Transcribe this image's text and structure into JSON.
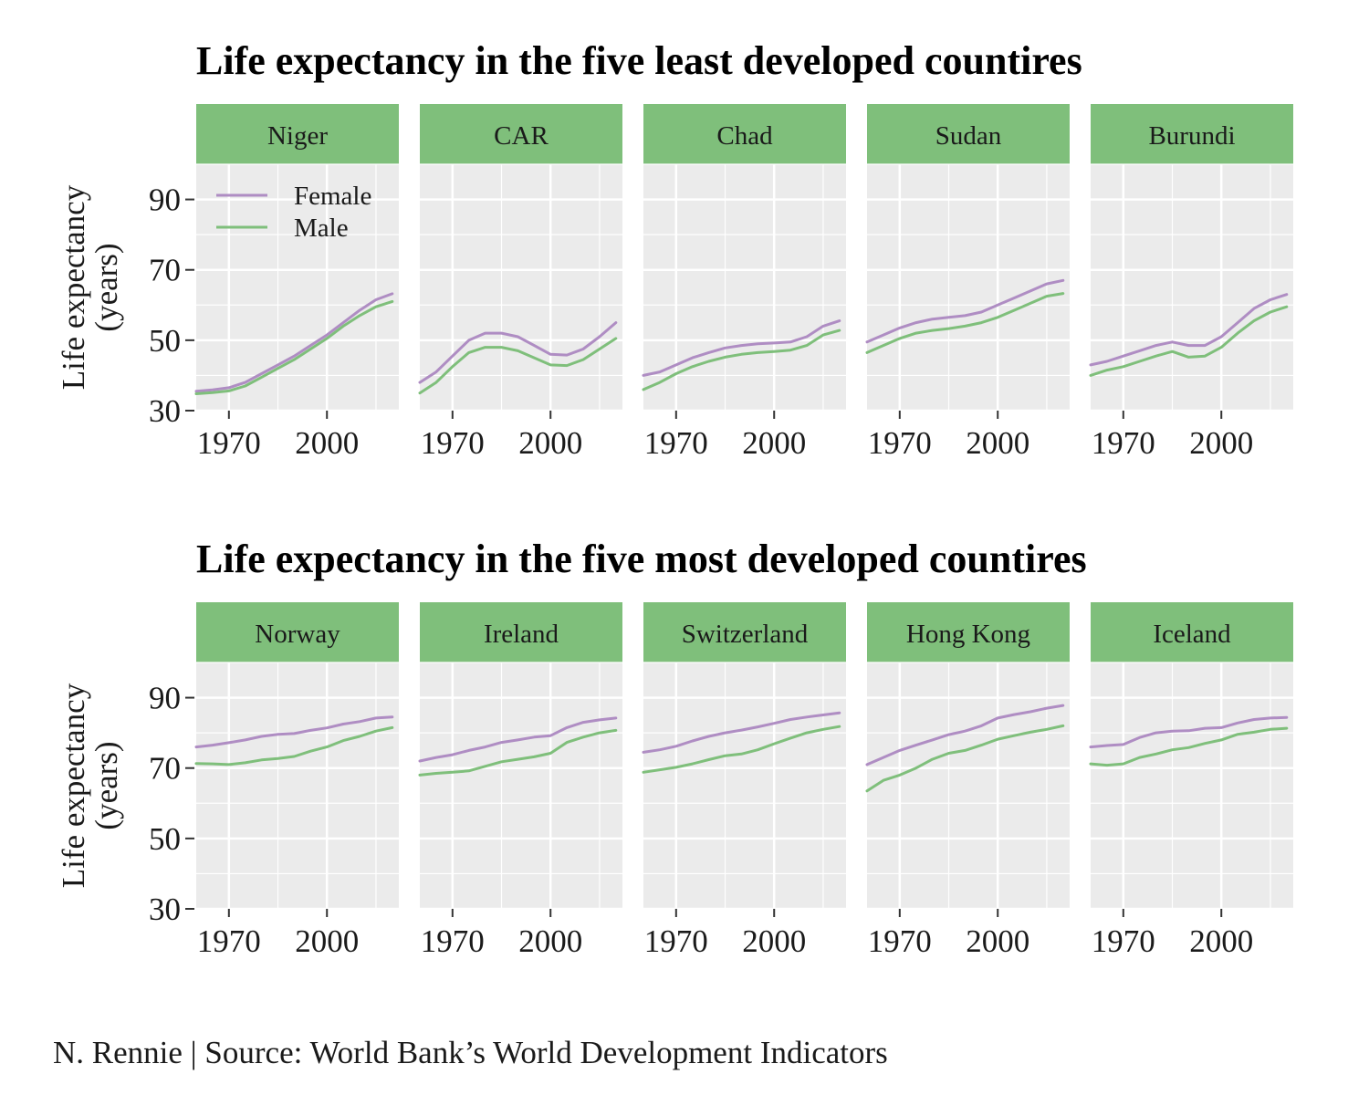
{
  "caption": "N. Rennie | Source: World Bank’s World Development Indicators",
  "colors": {
    "female": "#AF8DC3",
    "male": "#7FBF7B",
    "strip": "#7FBF7B",
    "panel_bg": "#EBEBEB",
    "grid": "#FFFFFF"
  },
  "chart_data": [
    {
      "type": "line",
      "title": "Life expectancy in the five least developed countires",
      "ylabel": "Life expectancy\n(years)",
      "xlabel": "",
      "xlim": [
        1960,
        2022
      ],
      "ylim": [
        30,
        100
      ],
      "yticks": [
        30,
        50,
        70,
        90
      ],
      "xticks": [
        1970,
        2000
      ],
      "grid": true,
      "legend": {
        "position": "inside-top-left-first-panel",
        "entries": [
          {
            "key": "female",
            "label": "Female"
          },
          {
            "key": "male",
            "label": "Male"
          }
        ]
      },
      "x": [
        1960,
        1965,
        1970,
        1975,
        1980,
        1985,
        1990,
        1995,
        2000,
        2005,
        2010,
        2015,
        2020
      ],
      "panels": [
        {
          "name": "Niger",
          "series": [
            {
              "key": "female",
              "values": [
                35.5,
                35.9,
                36.5,
                38,
                40.5,
                43,
                45.5,
                48.5,
                51.5,
                55,
                58.5,
                61.5,
                63.2
              ]
            },
            {
              "key": "male",
              "values": [
                34.8,
                35.1,
                35.6,
                37,
                39.5,
                42,
                44.5,
                47.5,
                50.5,
                54,
                57,
                59.5,
                61
              ]
            }
          ]
        },
        {
          "name": "CAR",
          "series": [
            {
              "key": "female",
              "values": [
                38,
                41,
                45.5,
                50,
                52,
                52,
                51,
                48.5,
                46,
                45.8,
                47.5,
                51,
                55
              ]
            },
            {
              "key": "male",
              "values": [
                35,
                38,
                42.5,
                46.5,
                48,
                48,
                47,
                45,
                43,
                42.8,
                44.5,
                47.5,
                50.5
              ]
            }
          ]
        },
        {
          "name": "Chad",
          "series": [
            {
              "key": "female",
              "values": [
                40,
                41,
                43,
                45,
                46.5,
                47.8,
                48.5,
                49,
                49.2,
                49.5,
                51,
                54,
                55.5
              ]
            },
            {
              "key": "male",
              "values": [
                36,
                38,
                40.5,
                42.5,
                44,
                45.2,
                46,
                46.5,
                46.8,
                47.2,
                48.5,
                51.5,
                52.8
              ]
            }
          ]
        },
        {
          "name": "Sudan",
          "series": [
            {
              "key": "female",
              "values": [
                49.5,
                51.5,
                53.5,
                55,
                56,
                56.5,
                57,
                58,
                60,
                62,
                64,
                66,
                67
              ]
            },
            {
              "key": "male",
              "values": [
                46.5,
                48.5,
                50.5,
                52,
                52.8,
                53.3,
                54,
                55,
                56.5,
                58.5,
                60.5,
                62.5,
                63.3
              ]
            }
          ]
        },
        {
          "name": "Burundi",
          "series": [
            {
              "key": "female",
              "values": [
                43,
                44,
                45.5,
                47,
                48.5,
                49.5,
                48.5,
                48.5,
                51,
                55,
                59,
                61.5,
                63
              ]
            },
            {
              "key": "male",
              "values": [
                40,
                41.5,
                42.5,
                44,
                45.5,
                46.8,
                45.2,
                45.5,
                48,
                52,
                55.5,
                58,
                59.5
              ]
            }
          ]
        }
      ]
    },
    {
      "type": "line",
      "title": "Life expectancy in the five most developed countires",
      "ylabel": "Life expectancy\n(years)",
      "xlabel": "",
      "xlim": [
        1960,
        2022
      ],
      "ylim": [
        30,
        100
      ],
      "yticks": [
        30,
        50,
        70,
        90
      ],
      "xticks": [
        1970,
        2000
      ],
      "grid": true,
      "x": [
        1960,
        1965,
        1970,
        1975,
        1980,
        1985,
        1990,
        1995,
        2000,
        2005,
        2010,
        2015,
        2020
      ],
      "panels": [
        {
          "name": "Norway",
          "series": [
            {
              "key": "female",
              "values": [
                76,
                76.5,
                77.2,
                78,
                79,
                79.6,
                79.8,
                80.7,
                81.4,
                82.5,
                83.2,
                84.2,
                84.5
              ]
            },
            {
              "key": "male",
              "values": [
                71.3,
                71.2,
                71,
                71.5,
                72.3,
                72.7,
                73.3,
                74.8,
                76,
                77.8,
                79,
                80.5,
                81.5
              ]
            }
          ]
        },
        {
          "name": "Ireland",
          "series": [
            {
              "key": "female",
              "values": [
                72,
                73,
                73.8,
                75,
                76,
                77.3,
                78,
                78.8,
                79.2,
                81.5,
                83,
                83.7,
                84.2
              ]
            },
            {
              "key": "male",
              "values": [
                68,
                68.5,
                68.8,
                69.2,
                70.5,
                71.8,
                72.5,
                73.2,
                74.2,
                77.3,
                78.8,
                80,
                80.7
              ]
            }
          ]
        },
        {
          "name": "Switzerland",
          "series": [
            {
              "key": "female",
              "values": [
                74.5,
                75.2,
                76.2,
                77.7,
                79,
                80,
                80.8,
                81.7,
                82.7,
                83.8,
                84.5,
                85.1,
                85.7
              ]
            },
            {
              "key": "male",
              "values": [
                68.8,
                69.5,
                70.2,
                71.2,
                72.4,
                73.5,
                74,
                75.2,
                76.9,
                78.5,
                80,
                81,
                81.8
              ]
            }
          ]
        },
        {
          "name": "Hong Kong",
          "series": [
            {
              "key": "female",
              "values": [
                71,
                73,
                75,
                76.5,
                78,
                79.5,
                80.5,
                82,
                84.2,
                85.2,
                86,
                87,
                87.8
              ]
            },
            {
              "key": "male",
              "values": [
                63.5,
                66.5,
                68,
                70,
                72.5,
                74.2,
                75,
                76.5,
                78.2,
                79.2,
                80.2,
                81,
                82
              ]
            }
          ]
        },
        {
          "name": "Iceland",
          "series": [
            {
              "key": "female",
              "values": [
                76,
                76.4,
                76.7,
                78.7,
                80,
                80.5,
                80.6,
                81.3,
                81.5,
                82.8,
                83.8,
                84.2,
                84.4
              ]
            },
            {
              "key": "male",
              "values": [
                71.2,
                70.8,
                71.2,
                73,
                74,
                75.2,
                75.8,
                77,
                78,
                79.6,
                80.2,
                81,
                81.3
              ]
            }
          ]
        }
      ]
    }
  ]
}
